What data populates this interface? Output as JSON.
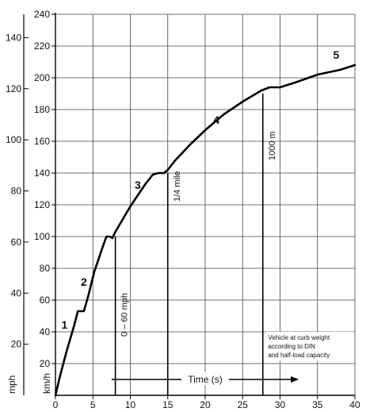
{
  "chart_data": {
    "type": "line",
    "xlabel": "Time (s)",
    "ylabel_kmh": "km/h",
    "ylabel_mph": "mph",
    "xlim": [
      0,
      40
    ],
    "ylim_kmh": [
      0,
      240
    ],
    "ylim_mph": [
      0,
      149.1
    ],
    "grid": true,
    "x_ticks": [
      0,
      5,
      10,
      15,
      20,
      25,
      30,
      35,
      40
    ],
    "kmh_ticks": [
      20,
      40,
      60,
      80,
      100,
      120,
      140,
      160,
      180,
      200,
      220,
      240
    ],
    "mph_ticks": [
      20,
      40,
      60,
      80,
      100,
      120,
      140
    ],
    "series": [
      {
        "x": [
          0,
          0.6,
          1.5,
          2.5,
          3.0,
          3.5,
          3.8,
          4.4,
          5.2,
          6.2,
          6.8,
          7.3,
          7.6,
          8.0,
          9.0,
          10.0,
          11.0,
          12.0,
          13.0,
          13.7,
          14.5,
          15.0,
          16.0,
          18.0,
          20.0,
          22.5,
          25.0,
          27.5,
          28.6,
          29.2,
          30.0,
          32.0,
          35.0,
          38.0,
          40.0
        ],
        "y": [
          0,
          12,
          28,
          44,
          53,
          53,
          53,
          63,
          78,
          92,
          100,
          100,
          99,
          103,
          111,
          119,
          126,
          133,
          139,
          140,
          140,
          142,
          148,
          158,
          167,
          177,
          185,
          192,
          194,
          194,
          194,
          197,
          202,
          205,
          208
        ]
      }
    ],
    "gear_labels": [
      {
        "text": "1",
        "x": 1.2,
        "y": 42
      },
      {
        "text": "2",
        "x": 3.8,
        "y": 69
      },
      {
        "text": "3",
        "x": 11.0,
        "y": 130
      },
      {
        "text": "4",
        "x": 21.5,
        "y": 171
      },
      {
        "text": "5",
        "x": 37.5,
        "y": 212
      }
    ],
    "markers": [
      {
        "x": 8.0,
        "y_top": 100,
        "label": "0 – 60 mph",
        "label_y": 37
      },
      {
        "x": 15.0,
        "y_top": 140,
        "label": "1/4 mile",
        "label_y": 122
      },
      {
        "x": 27.7,
        "y_top": 190,
        "label": "1000 m",
        "label_y": 148
      }
    ],
    "time_arrow": {
      "x_start": 7.5,
      "x_end": 32.5,
      "y": 10
    },
    "note": [
      "Vehicle at curb weight",
      "according to DIN",
      "and half-load capacity"
    ]
  }
}
